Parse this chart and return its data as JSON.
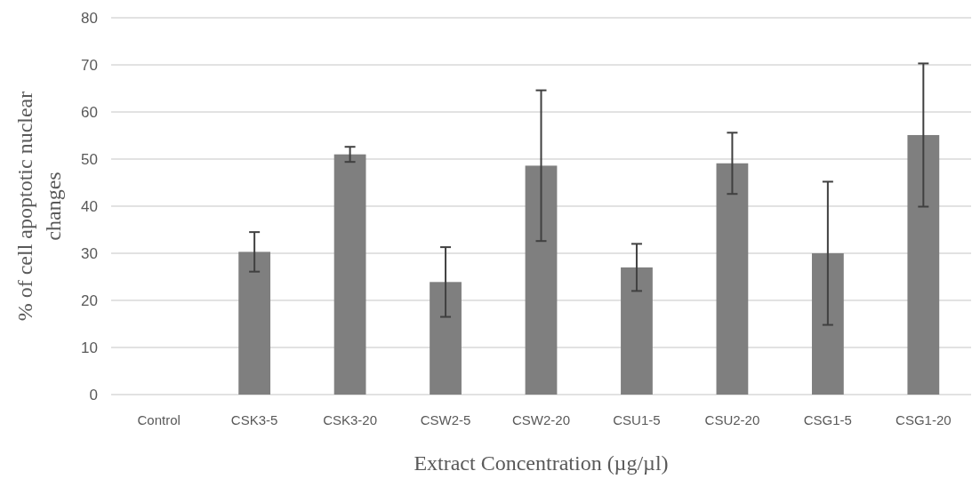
{
  "chart_data": {
    "type": "bar",
    "xlabel": "Extract Concentration (µg/µl)",
    "ylabel": "% of cell apoptotic nuclear changes",
    "categories": [
      "Control",
      "CSK3-5",
      "CSK3-20",
      "CSW2-5",
      "CSW2-20",
      "CSU1-5",
      "CSU2-20",
      "CSG1-5",
      "CSG1-20"
    ],
    "values": [
      0,
      30.3,
      51,
      23.9,
      48.6,
      27,
      49.1,
      30,
      55.1
    ],
    "errors": [
      null,
      4.2,
      1.6,
      7.4,
      16,
      5,
      6.5,
      15.2,
      15.2
    ],
    "color": "#7f7f7f",
    "ylim": [
      0,
      80
    ],
    "yticks": [
      0,
      10,
      20,
      30,
      40,
      50,
      60,
      70,
      80
    ],
    "grid": "y"
  }
}
